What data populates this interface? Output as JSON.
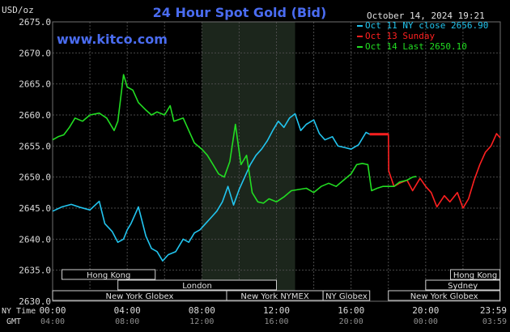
{
  "header": {
    "unit": "USD/oz",
    "title": "24 Hour Spot Gold (Bid)",
    "timestamp": "October 14, 2024 19:21",
    "site": "www.kitco.com"
  },
  "legend": [
    {
      "text": "Oct 11 NY close 2656.90",
      "color": "#22c4ee"
    },
    {
      "text": "Oct 13 Sunday",
      "color": "#ff2020"
    },
    {
      "text": "Oct 14 Last 2650.10",
      "color": "#22dd22"
    }
  ],
  "axis": {
    "nytime_label": "NY Time",
    "gmt_label": "GMT",
    "nytime_ticks": [
      "00:00",
      "04:00",
      "08:00",
      "12:00",
      "16:00",
      "20:00",
      "23:59"
    ],
    "gmt_ticks": [
      "04:00",
      "08:00",
      "12:00",
      "16:00",
      "20:00",
      "00:00",
      "03:59"
    ],
    "y_ticks": [
      "2675.0",
      "2670.0",
      "2665.0",
      "2660.0",
      "2655.0",
      "2650.0",
      "2645.0",
      "2640.0",
      "2635.0",
      "2630.0"
    ]
  },
  "sessions": [
    {
      "label": "Hong Kong",
      "row": 0,
      "start": 0.5,
      "end": 5.5
    },
    {
      "label": "London",
      "row": 1,
      "start": 3.5,
      "end": 12.0
    },
    {
      "label": "New York Globex",
      "row": 2,
      "start": 0.0,
      "end": 9.33
    },
    {
      "label": "New York NYMEX",
      "row": 2,
      "start": 9.33,
      "end": 14.5
    },
    {
      "label": "NY Globex",
      "row": 2,
      "start": 14.5,
      "end": 17.0
    },
    {
      "label": "Hong Kong",
      "row": 0,
      "start": 21.33,
      "end": 23.98
    },
    {
      "label": "Sydney",
      "row": 1,
      "start": 20.0,
      "end": 23.98
    },
    {
      "label": "New York Globex",
      "row": 2,
      "start": 18.0,
      "end": 23.98
    }
  ],
  "chart_data": {
    "type": "line",
    "title": "24 Hour Spot Gold (Bid)",
    "ylabel": "USD/oz",
    "xlabel": "",
    "x_unit": "NY time (hours)",
    "xlim": [
      0,
      24
    ],
    "ylim": [
      2630,
      2675
    ],
    "shaded_region": [
      8,
      13
    ],
    "grid": true,
    "series": [
      {
        "name": "Oct 11 NY close 2656.90",
        "color": "#22c4ee",
        "points": [
          [
            0,
            2644.5
          ],
          [
            0.5,
            2645.2
          ],
          [
            1,
            2645.6
          ],
          [
            1.5,
            2645.1
          ],
          [
            2,
            2644.7
          ],
          [
            2.5,
            2646.1
          ],
          [
            2.8,
            2642.5
          ],
          [
            3.2,
            2641.2
          ],
          [
            3.5,
            2639.5
          ],
          [
            3.8,
            2640.0
          ],
          [
            4,
            2641.5
          ],
          [
            4.2,
            2642.5
          ],
          [
            4.6,
            2645.2
          ],
          [
            5,
            2640.5
          ],
          [
            5.3,
            2638.5
          ],
          [
            5.6,
            2638.0
          ],
          [
            5.9,
            2636.5
          ],
          [
            6.2,
            2637.5
          ],
          [
            6.6,
            2638.0
          ],
          [
            7,
            2640.0
          ],
          [
            7.3,
            2639.5
          ],
          [
            7.6,
            2641.0
          ],
          [
            7.9,
            2641.5
          ],
          [
            8.2,
            2642.5
          ],
          [
            8.5,
            2643.5
          ],
          [
            8.8,
            2644.5
          ],
          [
            9.1,
            2646.0
          ],
          [
            9.4,
            2648.5
          ],
          [
            9.7,
            2645.5
          ],
          [
            10,
            2648.0
          ],
          [
            10.3,
            2650.0
          ],
          [
            10.6,
            2652.0
          ],
          [
            10.9,
            2653.5
          ],
          [
            11.2,
            2654.5
          ],
          [
            11.5,
            2655.8
          ],
          [
            11.8,
            2657.5
          ],
          [
            12.1,
            2659.0
          ],
          [
            12.4,
            2658.0
          ],
          [
            12.7,
            2659.5
          ],
          [
            13.0,
            2660.2
          ],
          [
            13.3,
            2657.5
          ],
          [
            13.6,
            2658.5
          ],
          [
            14.0,
            2659.2
          ],
          [
            14.3,
            2657.0
          ],
          [
            14.6,
            2656.0
          ],
          [
            15.0,
            2656.5
          ],
          [
            15.3,
            2655.0
          ],
          [
            15.6,
            2654.8
          ],
          [
            16.0,
            2654.5
          ],
          [
            16.4,
            2655.2
          ],
          [
            16.8,
            2657.2
          ],
          [
            17.0,
            2656.9
          ]
        ]
      },
      {
        "name": "Oct 13 Sunday",
        "color": "#ff2020",
        "points": [
          [
            17.0,
            2656.9
          ],
          [
            18.0,
            2656.9
          ],
          [
            18.02,
            2651.0
          ],
          [
            18.3,
            2648.5
          ],
          [
            18.6,
            2649.0
          ],
          [
            19.0,
            2649.5
          ],
          [
            19.3,
            2647.8
          ],
          [
            19.7,
            2649.8
          ],
          [
            20.0,
            2648.5
          ],
          [
            20.3,
            2647.5
          ],
          [
            20.6,
            2645.2
          ],
          [
            21.0,
            2647.0
          ],
          [
            21.3,
            2646.0
          ],
          [
            21.7,
            2647.5
          ],
          [
            22.0,
            2645.0
          ],
          [
            22.3,
            2646.5
          ],
          [
            22.6,
            2649.5
          ],
          [
            22.9,
            2652.0
          ],
          [
            23.2,
            2654.0
          ],
          [
            23.5,
            2655.0
          ],
          [
            23.8,
            2657.0
          ],
          [
            24.0,
            2656.3
          ]
        ]
      },
      {
        "name": "Oct 14 Last 2650.10",
        "color": "#22dd22",
        "points": [
          [
            0,
            2656.0
          ],
          [
            0.3,
            2656.5
          ],
          [
            0.6,
            2656.8
          ],
          [
            0.9,
            2658.0
          ],
          [
            1.2,
            2659.5
          ],
          [
            1.6,
            2659.0
          ],
          [
            2.0,
            2660.0
          ],
          [
            2.5,
            2660.3
          ],
          [
            2.9,
            2659.5
          ],
          [
            3.3,
            2657.5
          ],
          [
            3.5,
            2659.0
          ],
          [
            3.8,
            2666.5
          ],
          [
            4.0,
            2664.5
          ],
          [
            4.3,
            2664.0
          ],
          [
            4.6,
            2662.0
          ],
          [
            5.0,
            2660.8
          ],
          [
            5.3,
            2660.0
          ],
          [
            5.6,
            2660.5
          ],
          [
            6.0,
            2660.0
          ],
          [
            6.3,
            2661.5
          ],
          [
            6.5,
            2659.0
          ],
          [
            7.0,
            2659.5
          ],
          [
            7.3,
            2657.5
          ],
          [
            7.6,
            2655.5
          ],
          [
            8.0,
            2654.5
          ],
          [
            8.3,
            2653.5
          ],
          [
            8.6,
            2652.0
          ],
          [
            8.9,
            2650.5
          ],
          [
            9.2,
            2650.0
          ],
          [
            9.5,
            2652.5
          ],
          [
            9.8,
            2658.5
          ],
          [
            10.1,
            2652.0
          ],
          [
            10.4,
            2653.5
          ],
          [
            10.7,
            2647.5
          ],
          [
            11.0,
            2646.0
          ],
          [
            11.3,
            2645.8
          ],
          [
            11.6,
            2646.5
          ],
          [
            12.0,
            2646.0
          ],
          [
            12.4,
            2646.8
          ],
          [
            12.8,
            2647.8
          ],
          [
            13.2,
            2648.0
          ],
          [
            13.6,
            2648.2
          ],
          [
            14.0,
            2647.5
          ],
          [
            14.4,
            2648.5
          ],
          [
            14.8,
            2649.0
          ],
          [
            15.2,
            2648.5
          ],
          [
            15.6,
            2649.5
          ],
          [
            16.0,
            2650.5
          ],
          [
            16.3,
            2652.0
          ],
          [
            16.6,
            2652.2
          ],
          [
            16.9,
            2652.0
          ],
          [
            17.1,
            2647.8
          ],
          [
            17.4,
            2648.2
          ],
          [
            17.7,
            2648.5
          ],
          [
            18.0,
            2648.5
          ],
          [
            18.3,
            2648.5
          ],
          [
            18.6,
            2649.2
          ],
          [
            19.0,
            2649.5
          ],
          [
            19.3,
            2650.0
          ],
          [
            19.5,
            2650.1
          ]
        ]
      }
    ]
  }
}
